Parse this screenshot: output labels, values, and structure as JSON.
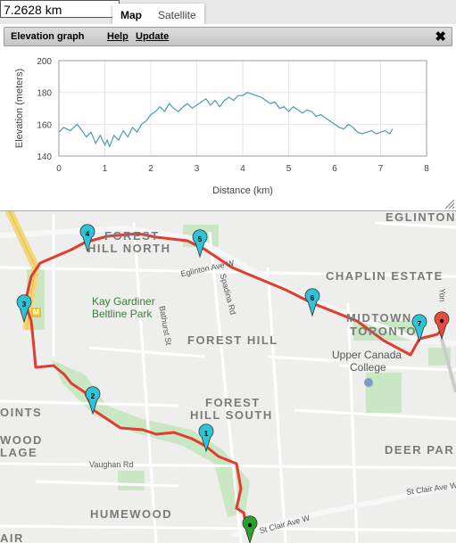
{
  "distance_box": {
    "value": "7.2628 km"
  },
  "map_type": {
    "map": "Map",
    "satellite": "Satellite"
  },
  "panel": {
    "title": "Elevation graph",
    "help": "Help",
    "update": "Update",
    "close": "✖"
  },
  "chart_data": {
    "type": "line",
    "xlabel": "Distance (km)",
    "ylabel": "Elevation (meters)",
    "xlim": [
      0,
      8
    ],
    "ylim": [
      140,
      200
    ],
    "x_ticks": [
      "0",
      "1",
      "2",
      "3",
      "4",
      "5",
      "6",
      "7",
      "8"
    ],
    "y_ticks": [
      "140",
      "160",
      "180",
      "200"
    ],
    "grid": true,
    "series": [
      {
        "color": "#4a9ab8",
        "x": [
          0,
          0.1,
          0.25,
          0.4,
          0.5,
          0.6,
          0.7,
          0.8,
          0.9,
          1.0,
          1.05,
          1.1,
          1.2,
          1.3,
          1.4,
          1.5,
          1.6,
          1.7,
          1.8,
          1.9,
          2.0,
          2.1,
          2.2,
          2.3,
          2.4,
          2.5,
          2.6,
          2.7,
          2.8,
          2.9,
          3.0,
          3.1,
          3.2,
          3.3,
          3.4,
          3.5,
          3.6,
          3.7,
          3.8,
          3.9,
          4.0,
          4.1,
          4.2,
          4.3,
          4.4,
          4.5,
          4.6,
          4.7,
          4.8,
          4.9,
          5.0,
          5.1,
          5.2,
          5.3,
          5.4,
          5.5,
          5.6,
          5.7,
          5.8,
          5.9,
          6.0,
          6.1,
          6.2,
          6.3,
          6.4,
          6.5,
          6.6,
          6.7,
          6.8,
          6.9,
          7.0,
          7.1,
          7.2,
          7.26
        ],
        "y": [
          155,
          158,
          156,
          160,
          156,
          152,
          155,
          148,
          153,
          147,
          150,
          146,
          153,
          150,
          156,
          152,
          158,
          155,
          160,
          162,
          166,
          168,
          171,
          168,
          173,
          170,
          168,
          171,
          173,
          170,
          172,
          174,
          176,
          172,
          175,
          171,
          175,
          177,
          175,
          178,
          178,
          180,
          179,
          178,
          177,
          175,
          173,
          174,
          170,
          171,
          168,
          171,
          169,
          167,
          169,
          168,
          165,
          166,
          164,
          162,
          160,
          158,
          157,
          160,
          158,
          155,
          154,
          155,
          156,
          154,
          155,
          156,
          154,
          157
        ]
      }
    ]
  },
  "markers": [
    {
      "id": "m1",
      "label": "1",
      "color": "#2ec4d6"
    },
    {
      "id": "m2",
      "label": "2",
      "color": "#2ec4d6"
    },
    {
      "id": "m4",
      "label": "4",
      "color": "#2ec4d6"
    },
    {
      "id": "m5",
      "label": "5",
      "color": "#2ec4d6"
    },
    {
      "id": "m6",
      "label": "6",
      "color": "#2ec4d6"
    },
    {
      "id": "m7",
      "label": "7",
      "color": "#2ec4d6"
    },
    {
      "id": "m3",
      "label": "3",
      "color": "#2ec4d6"
    },
    {
      "id": "start",
      "label": "",
      "color": "#2ca02c"
    },
    {
      "id": "end",
      "label": "",
      "color": "#e84b3c"
    }
  ],
  "map_labels": {
    "eglinton": "EGLINTON",
    "forest": "FOREST",
    "hill_north": "HILL NORTH",
    "chaplin": "CHAPLIN ESTATE",
    "midtown": "MIDTOWN",
    "toronto": "TORONTO",
    "forest_hill": "FOREST HILL",
    "forest2": "FOREST",
    "hill_south": "HILL SOUTH",
    "deer_park": "DEER PAR",
    "oints": "OINTS",
    "wood": "WOOD",
    "lage": "LAGE",
    "humewood": "HUMEWOOD",
    "air": "AIR",
    "park1": "Kay Gardiner",
    "park2": "Beltline Park",
    "ucc1": "Upper Canada",
    "ucc2": "College",
    "st_eglinton": "Eglinton Ave W",
    "st_spadina": "Spadina Rd",
    "st_bathurst": "Bathurst St",
    "st_vaughan": "Vaughan Rd",
    "st_stclair": "St Clair Ave W",
    "st_stclair2": "St Clair Ave W",
    "st_yonge": "Yon",
    "subway": "M"
  }
}
